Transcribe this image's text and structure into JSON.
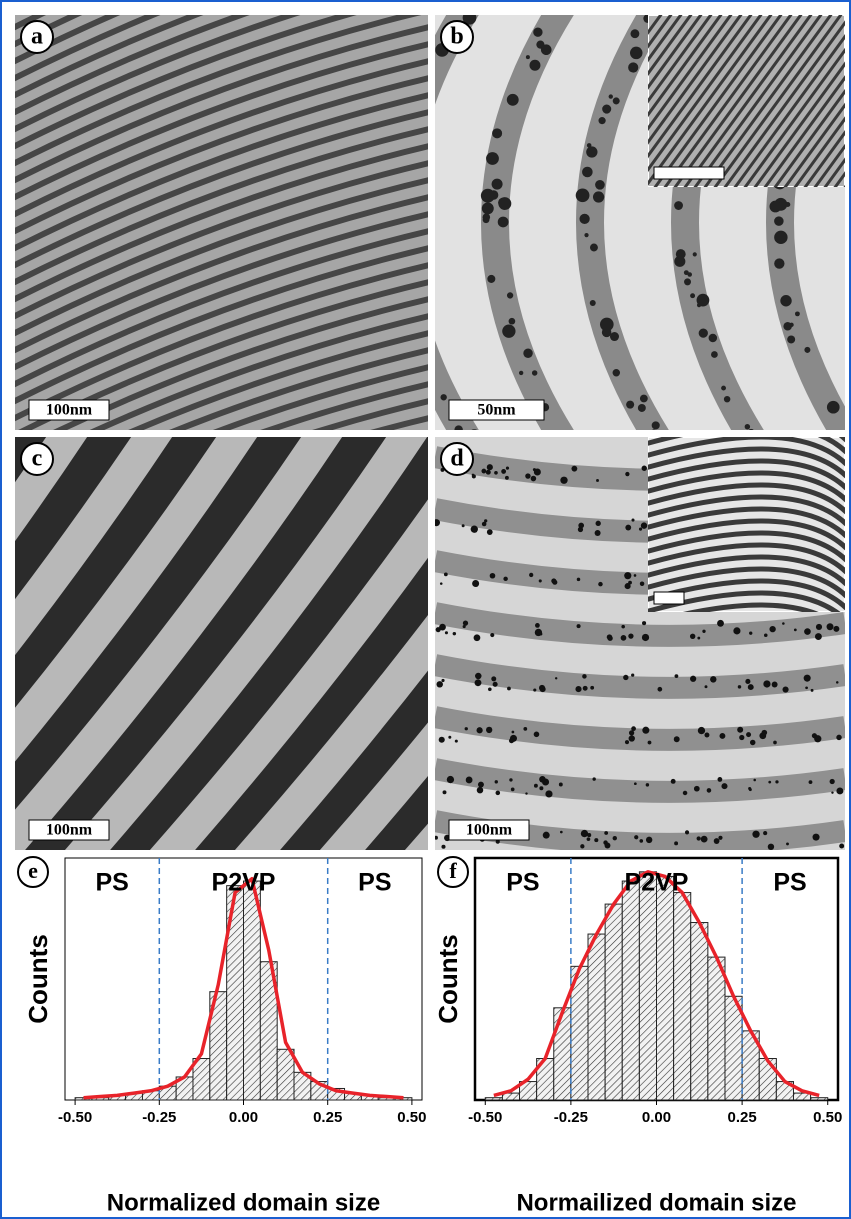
{
  "panels": [
    {
      "label": "a",
      "scale_bar": "100nm"
    },
    {
      "label": "b",
      "scale_bar": "50nm"
    },
    {
      "label": "c",
      "scale_bar": "100nm"
    },
    {
      "label": "d",
      "scale_bar": "100nm"
    }
  ],
  "chart_data": [
    {
      "type": "histogram",
      "label": "e",
      "xlabel": "Normalized domain size",
      "ylabel": "Counts",
      "bins": [
        -0.5,
        -0.45,
        -0.4,
        -0.35,
        -0.3,
        -0.25,
        -0.2,
        -0.15,
        -0.1,
        -0.05,
        0,
        0.05,
        0.1,
        0.15,
        0.2,
        0.25,
        0.3,
        0.35,
        0.4,
        0.45,
        0.5
      ],
      "values": [
        1,
        1,
        2,
        3,
        4,
        6,
        10,
        18,
        47,
        93,
        95,
        60,
        22,
        12,
        8,
        5,
        3,
        2,
        1,
        1
      ],
      "line_values": [
        1,
        1.5,
        2,
        3,
        4,
        6,
        10,
        20,
        50,
        90,
        96,
        65,
        25,
        12,
        7,
        4,
        3,
        2,
        1.5,
        1
      ],
      "color": "#e8232a",
      "vlines": [
        -0.25,
        0.25
      ],
      "vline_color": "#3a7cc7",
      "regions": [
        "PS",
        "P2VP",
        "PS"
      ],
      "xlim": [
        -0.53,
        0.53
      ],
      "ylim": [
        0,
        105
      ],
      "xticks": [
        {
          "value": -0.5,
          "label": "-0.50"
        },
        {
          "value": -0.25,
          "label": "-0.25"
        },
        {
          "value": 0,
          "label": "0.00"
        },
        {
          "value": 0.25,
          "label": "0.25"
        },
        {
          "value": 0.5,
          "label": "0.50"
        }
      ]
    },
    {
      "type": "histogram",
      "label": "f",
      "xlabel": "Normailized domain size",
      "ylabel": "Counts",
      "bins": [
        -0.5,
        -0.45,
        -0.4,
        -0.35,
        -0.3,
        -0.25,
        -0.2,
        -0.15,
        -0.1,
        -0.05,
        0,
        0.05,
        0.1,
        0.15,
        0.2,
        0.25,
        0.3,
        0.35,
        0.4,
        0.45,
        0.5
      ],
      "values": [
        1,
        3,
        8,
        18,
        40,
        58,
        72,
        85,
        95,
        99,
        97,
        90,
        77,
        62,
        45,
        30,
        18,
        8,
        3,
        1
      ],
      "line_values": [
        2,
        4,
        9,
        18,
        38,
        57,
        72,
        85,
        95,
        99,
        97,
        90,
        77,
        62,
        45,
        30,
        17,
        8,
        4,
        2
      ],
      "color": "#e8232a",
      "vlines": [
        -0.25,
        0.25
      ],
      "vline_color": "#3a7cc7",
      "regions": [
        "PS",
        "P2VP",
        "PS"
      ],
      "xlim": [
        -0.53,
        0.53
      ],
      "ylim": [
        0,
        105
      ],
      "xticks": [
        {
          "value": -0.5,
          "label": "-0.50"
        },
        {
          "value": -0.25,
          "label": "-0.25"
        },
        {
          "value": 0,
          "label": "0.00"
        },
        {
          "value": 0.25,
          "label": "0.25"
        },
        {
          "value": 0.5,
          "label": "0.50"
        }
      ]
    }
  ]
}
